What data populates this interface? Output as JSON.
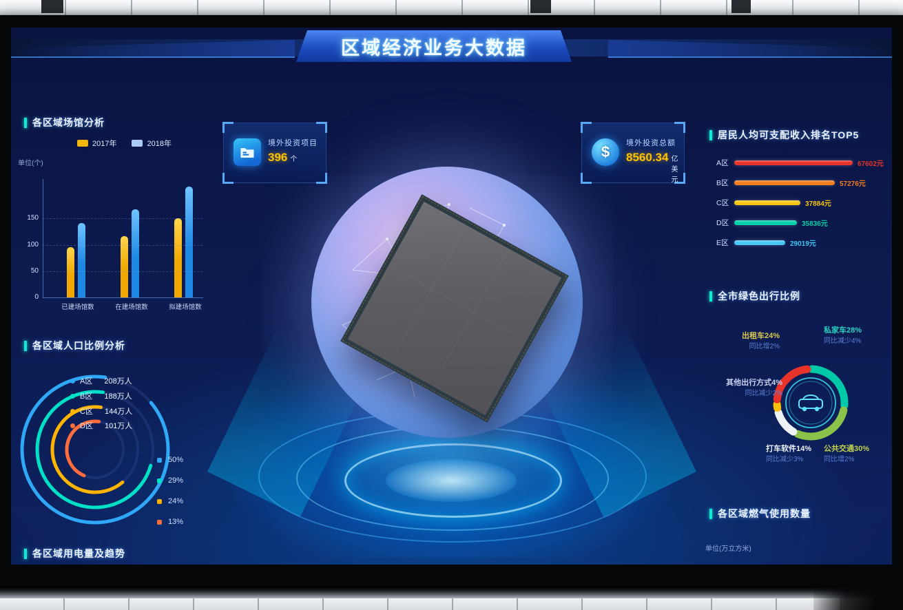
{
  "header": {
    "title": "区域经济业务大数据"
  },
  "cards": [
    {
      "icon": "folder-icon",
      "label": "境外投资项目",
      "value": "396",
      "unit": "个"
    },
    {
      "icon": "dollar-icon",
      "icon_glyph": "$",
      "label": "境外投资总额",
      "value": "8560.34",
      "unit": "亿美元"
    }
  ],
  "venues": {
    "title": "各区域场馆分析",
    "unit_label": "单位(个)",
    "chart_data": {
      "type": "bar",
      "categories": [
        "已建场馆数",
        "在建场馆数",
        "拟建场馆数"
      ],
      "series": [
        {
          "name": "2017年",
          "swatch": "#f2b705",
          "bar_color": "#f0a800",
          "values": [
            95,
            116,
            150
          ]
        },
        {
          "name": "2018年",
          "swatch": "#a9c9f9",
          "bar_color": "#1e88e5",
          "values": [
            141,
            168,
            211
          ]
        }
      ],
      "yticks": [
        0,
        50,
        100,
        150
      ],
      "ylim": [
        0,
        225
      ],
      "grid": "dashed horizontal"
    }
  },
  "population": {
    "title": "各区域人口比例分析",
    "chart_data": {
      "type": "radial-arcs",
      "items": [
        {
          "label": "A区",
          "value": "208万人",
          "percent": "50%",
          "color": "#2fa8f8",
          "sweep": 318,
          "radius": 106
        },
        {
          "label": "B区",
          "value": "188万人",
          "percent": "29%",
          "color": "#00e0c6",
          "sweep": 262,
          "radius": 84
        },
        {
          "label": "C区",
          "value": "144万人",
          "percent": "24%",
          "color": "#ffb400",
          "sweep": 228,
          "radius": 62
        },
        {
          "label": "D区",
          "value": "101万人",
          "percent": "13%",
          "color": "#ff6d3d",
          "sweep": 165,
          "radius": 41
        }
      ]
    }
  },
  "electricity": {
    "title": "各区域用电量及趋势"
  },
  "income": {
    "title": "居民人均可支配收入排名TOP5",
    "chart_data": {
      "type": "bar",
      "orientation": "horizontal",
      "categories": [
        "A区",
        "B区",
        "C区",
        "D区",
        "E区"
      ],
      "values": [
        67602,
        57276,
        37884,
        35836,
        29019
      ],
      "value_labels": [
        "67602元",
        "57276元",
        "37884元",
        "35836元",
        "29019元"
      ],
      "colors": [
        "#e8332a",
        "#f57d1b",
        "#f5c513",
        "#00cfa8",
        "#45c6f5"
      ],
      "xlim": [
        0,
        67602
      ]
    }
  },
  "green_travel": {
    "title": "全市绿色出行比例",
    "chart_data": {
      "type": "donut",
      "slices": [
        {
          "label": "私家车",
          "percent": 28,
          "color": "#00c9a7",
          "yoy": "同比减少4%"
        },
        {
          "label": "公共交通",
          "percent": 30,
          "color": "#8bc34a",
          "yoy": "同比增2%"
        },
        {
          "label": "打车软件",
          "percent": 14,
          "color": "#eef2f5",
          "yoy": "同比减少3%"
        },
        {
          "label": "其他出行方式",
          "percent": 4,
          "color": "#ffc107",
          "yoy": "同比减少2%"
        },
        {
          "label": "出租车",
          "percent": 24,
          "color": "#e8332a",
          "yoy": "同比增2%"
        }
      ]
    },
    "labels": {
      "taxi1": "出租车24%",
      "taxi2": "同比增2%",
      "private1": "私家车28%",
      "private2": "同比减少4%",
      "other1": "其他出行方式4%",
      "other2": "同比减少2%",
      "app1": "打车软件14%",
      "app2": "同比减少3%",
      "transit1": "公共交通30%",
      "transit2": "同比增2%"
    }
  },
  "gas": {
    "title": "各区域燃气使用数量",
    "unit_label": "单位(万立方米)"
  }
}
